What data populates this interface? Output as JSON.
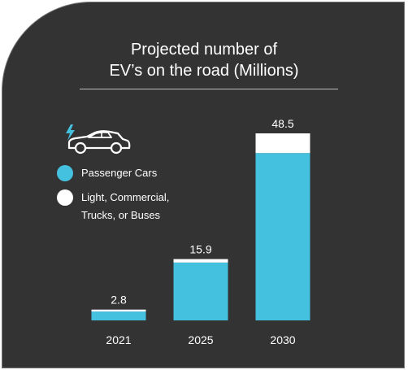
{
  "colors": {
    "background": "#333333",
    "passenger": "#45c1e0",
    "commercial": "#ffffff",
    "text": "#ffffff"
  },
  "icon": "electric-car-icon",
  "chart_data": {
    "type": "bar",
    "stacked": true,
    "title": [
      "Projected number of",
      "EV’s on the road (Millions)"
    ],
    "categories": [
      "2021",
      "2025",
      "2030"
    ],
    "totals_labels": [
      "2.8",
      "15.9",
      "48.5"
    ],
    "series": [
      {
        "name": "Passenger Cars",
        "color": "#45c1e0",
        "values": [
          2.3,
          15.0,
          43.4
        ]
      },
      {
        "name": "Light, Commercial, Trucks, or Buses",
        "color": "#ffffff",
        "values": [
          0.5,
          0.9,
          5.1
        ]
      }
    ],
    "legend": [
      {
        "lines": [
          "Passenger Cars"
        ],
        "color": "#45c1e0"
      },
      {
        "lines": [
          "Light, Commercial,",
          "Trucks, or Buses"
        ],
        "color": "#ffffff"
      }
    ],
    "ylim": [
      0,
      48.5
    ],
    "grid": false,
    "axes_visible": false,
    "legend_position": "top-left"
  }
}
